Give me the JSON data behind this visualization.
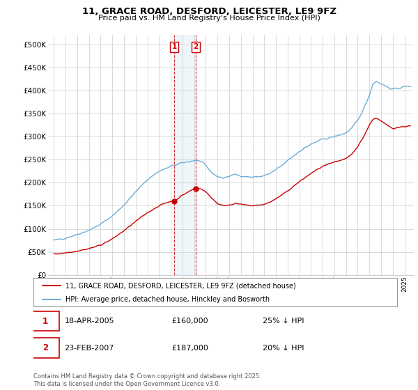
{
  "title": "11, GRACE ROAD, DESFORD, LEICESTER, LE9 9FZ",
  "subtitle": "Price paid vs. HM Land Registry's House Price Index (HPI)",
  "legend_line1": "11, GRACE ROAD, DESFORD, LEICESTER, LE9 9FZ (detached house)",
  "legend_line2": "HPI: Average price, detached house, Hinckley and Bosworth",
  "transaction1_label": "1",
  "transaction1_date": "18-APR-2005",
  "transaction1_price": "£160,000",
  "transaction1_hpi": "25% ↓ HPI",
  "transaction2_label": "2",
  "transaction2_date": "23-FEB-2007",
  "transaction2_price": "£187,000",
  "transaction2_hpi": "20% ↓ HPI",
  "footnote": "Contains HM Land Registry data © Crown copyright and database right 2025.\nThis data is licensed under the Open Government Licence v3.0.",
  "hpi_color": "#6baed6",
  "price_color": "#cc0000",
  "marker1_x": 2005.29,
  "marker1_y": 160000,
  "marker2_x": 2007.15,
  "marker2_y": 187000,
  "ylim_min": 0,
  "ylim_max": 520000,
  "xlim_min": 1994.5,
  "xlim_max": 2025.8,
  "yticks": [
    0,
    50000,
    100000,
    150000,
    200000,
    250000,
    300000,
    350000,
    400000,
    450000,
    500000
  ],
  "xticks": [
    1995,
    1996,
    1997,
    1998,
    1999,
    2000,
    2001,
    2002,
    2003,
    2004,
    2005,
    2006,
    2007,
    2008,
    2009,
    2010,
    2011,
    2012,
    2013,
    2014,
    2015,
    2016,
    2017,
    2018,
    2019,
    2020,
    2021,
    2022,
    2023,
    2024,
    2025
  ],
  "background_color": "#ffffff",
  "grid_color": "#cccccc"
}
